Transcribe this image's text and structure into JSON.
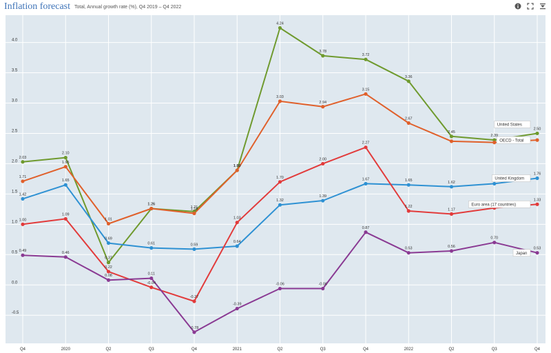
{
  "header": {
    "title": "Inflation forecast",
    "subtitle": "Total, Annual growth rate (%), Q4 2019 – Q4 2022"
  },
  "toolbar": [
    {
      "name": "info-icon",
      "glyph": "i"
    },
    {
      "name": "fullscreen-icon",
      "glyph": "⛶"
    },
    {
      "name": "filter-icon",
      "glyph": "⏷"
    }
  ],
  "chart_data": {
    "type": "line",
    "title": "Inflation forecast",
    "subtitle": "Total, Annual growth rate (%), Q4 2019 – Q4 2022",
    "categories": [
      "Q4",
      "2020",
      "Q2",
      "Q3",
      "Q4",
      "2021",
      "Q2",
      "Q3",
      "Q4",
      "2022",
      "Q2",
      "Q3",
      "Q4"
    ],
    "ylim": [
      -0.85,
      4.45
    ],
    "yticks": [
      -0.5,
      0.0,
      0.5,
      1.0,
      1.5,
      2.0,
      2.5,
      3.0,
      3.5,
      4.0
    ],
    "ytick_labels": [
      "-0.5",
      "0.0",
      "0.5",
      "1.0",
      "1.5",
      "2.0",
      "2.5",
      "3.0",
      "3.5",
      "4.0"
    ],
    "grid": true,
    "series": [
      {
        "name": "United States",
        "color": "#6f9a2e",
        "values": [
          2.03,
          2.1,
          0.37,
          1.26,
          1.21,
          1.89,
          4.24,
          3.78,
          3.72,
          3.36,
          2.45,
          2.39,
          2.5
        ],
        "labels": [
          "2.03",
          "2.10",
          "0.37",
          "1.26",
          "1.21",
          "1.89",
          "4.24",
          "3.78",
          "3.72",
          "3.36",
          "2.45",
          "2.39",
          "2.50"
        ],
        "legend": "United States",
        "legend_value": "2.50"
      },
      {
        "name": "OECD - Total",
        "color": "#e0602b",
        "values": [
          1.71,
          1.95,
          1.01,
          1.26,
          1.18,
          1.89,
          3.03,
          2.94,
          3.15,
          2.67,
          2.37,
          2.35,
          2.39
        ],
        "labels": [
          "1.71",
          "1.95",
          "1.01",
          "1.26",
          "1.18",
          "1.89",
          "3.03",
          "2.94",
          "3.15",
          "2.67",
          "",
          "",
          ""
        ],
        "legend": "OECD - Total",
        "legend_value": ""
      },
      {
        "name": "United Kingdom",
        "color": "#2e91d3",
        "values": [
          1.42,
          1.65,
          0.69,
          0.61,
          0.59,
          0.64,
          1.32,
          1.39,
          1.67,
          1.65,
          1.62,
          1.67,
          1.76
        ],
        "labels": [
          "1.42",
          "1.65",
          "0.69",
          "0.61",
          "0.59",
          "0.64",
          "1.32",
          "1.39",
          "1.67",
          "1.65",
          "1.62",
          "",
          "1.76"
        ],
        "legend": "United Kingdom",
        "legend_value": "1.76"
      },
      {
        "name": "Euro area (17 countries)",
        "color": "#e23b3b",
        "values": [
          1.0,
          1.09,
          0.22,
          -0.04,
          -0.27,
          1.03,
          1.7,
          2.0,
          2.27,
          1.22,
          1.17,
          1.27,
          1.33
        ],
        "labels": [
          "1.00",
          "1.09",
          "0.22",
          "-0.04",
          "-0.27",
          "1.03",
          "1.70",
          "2.00",
          "2.27",
          "1.22",
          "1.17",
          "",
          "1.33"
        ],
        "legend": "Euro area (17 countries)",
        "legend_value": "1.33"
      },
      {
        "name": "Japan",
        "color": "#8a3a93",
        "values": [
          0.49,
          0.46,
          0.08,
          0.11,
          -0.78,
          -0.39,
          -0.06,
          -0.06,
          0.87,
          0.53,
          0.56,
          0.7,
          0.53
        ],
        "labels": [
          "0.49",
          "0.46",
          "0.08",
          "0.11",
          "-0.78",
          "-0.39",
          "-0.06",
          "-0.06",
          "0.87",
          "0.53",
          "0.56",
          "0.70",
          "0.53"
        ],
        "legend": "Japan",
        "legend_value": "0.53"
      }
    ]
  }
}
